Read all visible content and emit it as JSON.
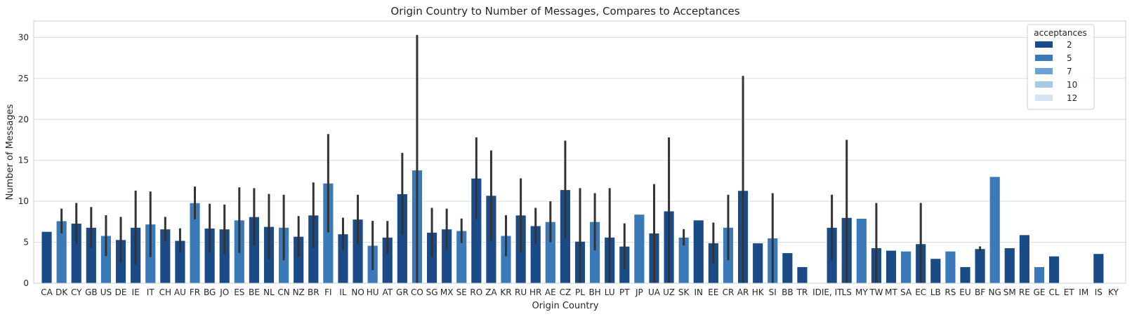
{
  "chart_data": {
    "type": "bar",
    "title": "Origin Country to Number of Messages, Compares to Acceptances",
    "xlabel": "Origin Country",
    "ylabel": "Number of Messages",
    "ylim": [
      0,
      32
    ],
    "yticks": [
      0,
      5,
      10,
      15,
      20,
      25,
      30
    ],
    "grid": true,
    "legend_position": "top-right",
    "legend": {
      "title": "acceptances",
      "entries": [
        {
          "label": "2",
          "color": "#1a4b86"
        },
        {
          "label": "5",
          "color": "#3a7ab8"
        },
        {
          "label": "7",
          "color": "#6ca3d2"
        },
        {
          "label": "10",
          "color": "#a8c9e6"
        },
        {
          "label": "12",
          "color": "#d6e4f2"
        }
      ]
    },
    "errorbar_color": "#333333",
    "categories": [
      "CA",
      "DK",
      "CY",
      "GB",
      "US",
      "DE",
      "IE",
      "IT",
      "CH",
      "AU",
      "FR",
      "BG",
      "JO",
      "ES",
      "BE",
      "NL",
      "CN",
      "NZ",
      "BR",
      "FI",
      "IL",
      "NO",
      "HU",
      "AT",
      "GR",
      "CO",
      "SG",
      "MX",
      "SE",
      "RO",
      "ZA",
      "KR",
      "RU",
      "HR",
      "AE",
      "CZ",
      "PL",
      "BH",
      "LU",
      "PT",
      "JP",
      "UA",
      "UZ",
      "SK",
      "IN",
      "EE",
      "CR",
      "AR",
      "HK",
      "SI",
      "BB",
      "TR",
      "ID",
      "IE, IT",
      "LS",
      "MY",
      "TW",
      "MT",
      "SA",
      "EC",
      "LB",
      "RS",
      "EU",
      "BF",
      "NG",
      "SM",
      "RE",
      "GE",
      "CL",
      "ET",
      "IM",
      "IS",
      "KY"
    ],
    "values": [
      6.3,
      7.6,
      7.3,
      6.8,
      5.8,
      5.3,
      6.8,
      7.2,
      6.6,
      5.2,
      9.8,
      6.7,
      6.6,
      7.7,
      8.1,
      6.9,
      6.8,
      5.7,
      8.3,
      12.2,
      6.0,
      7.8,
      4.6,
      5.6,
      10.9,
      13.8,
      6.2,
      6.6,
      6.4,
      12.8,
      10.7,
      5.8,
      8.3,
      7.0,
      7.5,
      11.4,
      5.1,
      7.5,
      5.6,
      4.5,
      8.4,
      6.1,
      8.8,
      5.6,
      7.7,
      4.9,
      6.8,
      11.3,
      4.9,
      5.5,
      3.7,
      2.0,
      0,
      6.8,
      8.0,
      7.9,
      4.3,
      4.0,
      3.9,
      4.8,
      3.0,
      3.9,
      2.0,
      4.2,
      13.0,
      4.3,
      5.9,
      2.0,
      3.3,
      0,
      0,
      3.6,
      0
    ],
    "errors": [
      0,
      1.5,
      2.5,
      2.5,
      2.5,
      2.8,
      4.5,
      4.0,
      1.5,
      1.5,
      2.0,
      3.0,
      3.0,
      4.0,
      3.5,
      4.0,
      4.0,
      2.5,
      4.0,
      6.0,
      2.0,
      3.0,
      3.0,
      2.0,
      5.0,
      16.5,
      3.0,
      2.5,
      1.5,
      5.0,
      5.5,
      2.5,
      4.5,
      2.2,
      2.5,
      6.0,
      6.5,
      3.5,
      6.0,
      2.8,
      0,
      6.0,
      9.0,
      1.0,
      0,
      2.5,
      4.0,
      14.0,
      0,
      5.5,
      0,
      0,
      0,
      4.0,
      9.5,
      0,
      5.5,
      0,
      0,
      5.0,
      0,
      0,
      0,
      0.3,
      0,
      0,
      0,
      0,
      0,
      0,
      0,
      0,
      0
    ]
  }
}
